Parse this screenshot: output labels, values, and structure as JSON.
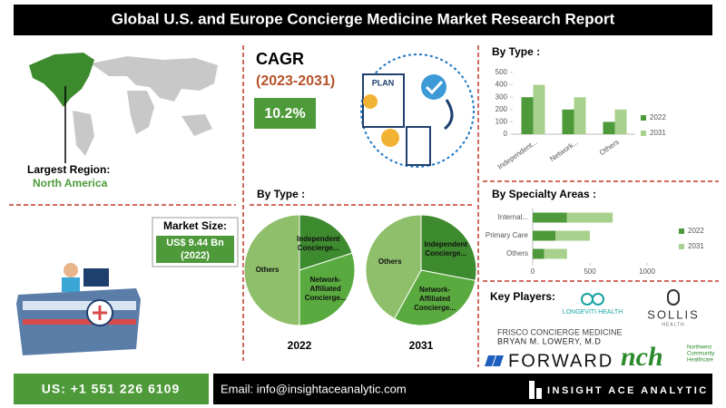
{
  "header": {
    "title": "Global U.S. and Europe Concierge Medicine Market Research Report"
  },
  "region": {
    "label": "Largest Region:",
    "value": "North America"
  },
  "cagr": {
    "title": "CAGR",
    "period": "(2023-2031)",
    "value": "10.2%",
    "icon_label": "PLAN"
  },
  "market_size": {
    "label": "Market Size:",
    "value": "US$ 9.44 Bn",
    "year": "(2022)"
  },
  "chart_data": [
    {
      "type": "bar",
      "title": "By Type :",
      "categories": [
        "Independent...",
        "Network...",
        "Others"
      ],
      "series": [
        {
          "name": "2022",
          "color": "#4e9a3a",
          "values": [
            300,
            200,
            100
          ]
        },
        {
          "name": "2031",
          "color": "#a9d18e",
          "values": [
            400,
            300,
            200
          ]
        }
      ],
      "ylim": [
        0,
        500
      ],
      "yticks": [
        0,
        100,
        200,
        300,
        400,
        500
      ],
      "grid": false,
      "legend": "right"
    },
    {
      "type": "pie",
      "title": "By Type :",
      "label": "2022",
      "categories": [
        "Independent Concierge...",
        "Network-Affiliated Concierge...",
        "Others"
      ],
      "values": [
        20,
        30,
        50
      ],
      "colors": [
        "#3e8a2e",
        "#5aab3f",
        "#8fbf6a"
      ]
    },
    {
      "type": "pie",
      "label": "2031",
      "categories": [
        "Independent Concierge...",
        "Network-Affiliated Concierge...",
        "Others"
      ],
      "values": [
        28,
        30,
        42
      ],
      "colors": [
        "#3e8a2e",
        "#5aab3f",
        "#8fbf6a"
      ]
    },
    {
      "type": "bar",
      "horizontal": true,
      "stacked": true,
      "title": "By Specialty Areas :",
      "categories": [
        "Internal...",
        "Primary Care",
        "Others"
      ],
      "series": [
        {
          "name": "2022",
          "color": "#4e9a3a",
          "values": [
            300,
            200,
            100
          ]
        },
        {
          "name": "2031",
          "color": "#a9d18e",
          "values": [
            400,
            300,
            200
          ]
        }
      ],
      "xlim": [
        0,
        1000
      ],
      "xticks": [
        0,
        500,
        1000
      ],
      "grid": false,
      "legend": "right"
    }
  ],
  "key_players": {
    "title": "Key Players:",
    "longeviti": "LONGEVITI HEALTH",
    "sollis": {
      "name": "SOLLIS",
      "sub": "HEALTH"
    },
    "frisco": {
      "line1": "FRISCO CONCIERGE MEDICINE",
      "line2": "BRYAN M. LOWERY, M.D"
    },
    "forward": "FORWARD",
    "nch": {
      "mark": "nch",
      "lines": [
        "Northwest",
        "Community",
        "Healthcare"
      ]
    }
  },
  "footer": {
    "phone": "US: +1 551 226 6109",
    "email": "Email: info@insightaceanalytic.com",
    "brand": "INSIGHT ACE ANALYTIC"
  }
}
